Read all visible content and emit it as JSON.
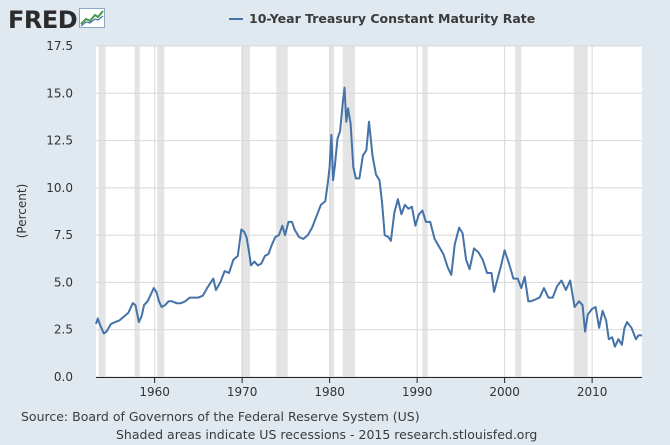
{
  "brand": {
    "logo_text": "FRED",
    "logo_icon": "trend-chart-icon"
  },
  "colors": {
    "background": "#e1e9f0",
    "plot_background": "#ffffff",
    "line": "#4572a7",
    "recession": "#e4e4e4",
    "grid": "#d8d8d8"
  },
  "footer": {
    "source": "Source: Board of Governors of the Federal Reserve System (US)",
    "note": "Shaded areas indicate US recessions - 2015 research.stlouisfed.org"
  },
  "chart_data": {
    "type": "line",
    "title": "",
    "xlabel": "",
    "ylabel": "(Percent)",
    "xlim": [
      1953.3,
      2015.7
    ],
    "ylim": [
      0,
      17.5
    ],
    "x_ticks": [
      1960,
      1970,
      1980,
      1990,
      2000,
      2010
    ],
    "x_tick_labels": [
      "1960",
      "1970",
      "1980",
      "1990",
      "2000",
      "2010"
    ],
    "y_ticks": [
      0,
      2.5,
      5,
      7.5,
      10,
      12.5,
      15,
      17.5
    ],
    "y_tick_labels": [
      "0.0",
      "2.5",
      "5.0",
      "7.5",
      "10.0",
      "12.5",
      "15.0",
      "17.5"
    ],
    "grid": true,
    "legend_position": "top-center",
    "recessions": [
      [
        1953.6,
        1954.4
      ],
      [
        1957.7,
        1958.3
      ],
      [
        1960.3,
        1961.1
      ],
      [
        1969.9,
        1970.9
      ],
      [
        1973.9,
        1975.2
      ],
      [
        1980.0,
        1980.5
      ],
      [
        1981.5,
        1982.9
      ],
      [
        1990.6,
        1991.2
      ],
      [
        2001.2,
        2001.9
      ],
      [
        2007.9,
        2009.5
      ]
    ],
    "series": [
      {
        "name": "10-Year Treasury Constant Maturity Rate",
        "x": [
          1953.3,
          1953.5,
          1953.8,
          1954.2,
          1954.5,
          1955.0,
          1955.5,
          1956.0,
          1956.5,
          1957.0,
          1957.5,
          1957.8,
          1958.2,
          1958.5,
          1958.8,
          1959.2,
          1959.6,
          1959.9,
          1960.2,
          1960.5,
          1960.8,
          1961.2,
          1961.6,
          1962.0,
          1962.5,
          1963.0,
          1963.5,
          1964.0,
          1964.5,
          1965.0,
          1965.5,
          1966.0,
          1966.7,
          1967.0,
          1967.5,
          1968.0,
          1968.5,
          1969.0,
          1969.5,
          1969.9,
          1970.2,
          1970.5,
          1970.8,
          1971.0,
          1971.4,
          1971.8,
          1972.2,
          1972.6,
          1973.0,
          1973.4,
          1973.8,
          1974.2,
          1974.6,
          1974.9,
          1975.3,
          1975.7,
          1976.0,
          1976.5,
          1977.0,
          1977.5,
          1978.0,
          1978.5,
          1979.0,
          1979.5,
          1979.8,
          1980.0,
          1980.2,
          1980.4,
          1980.6,
          1980.9,
          1981.2,
          1981.5,
          1981.7,
          1981.9,
          1982.1,
          1982.4,
          1982.7,
          1983.0,
          1983.4,
          1983.8,
          1984.2,
          1984.5,
          1984.9,
          1985.3,
          1985.7,
          1986.0,
          1986.3,
          1986.7,
          1987.0,
          1987.4,
          1987.8,
          1988.2,
          1988.6,
          1989.0,
          1989.4,
          1989.8,
          1990.2,
          1990.6,
          1991.0,
          1991.5,
          1992.0,
          1992.5,
          1993.0,
          1993.5,
          1993.9,
          1994.3,
          1994.8,
          1995.2,
          1995.6,
          1996.0,
          1996.5,
          1997.0,
          1997.5,
          1998.0,
          1998.5,
          1998.8,
          1999.2,
          1999.6,
          2000.0,
          2000.5,
          2001.0,
          2001.5,
          2001.9,
          2002.3,
          2002.7,
          2003.0,
          2003.5,
          2004.0,
          2004.5,
          2005.0,
          2005.5,
          2006.0,
          2006.5,
          2007.0,
          2007.5,
          2008.0,
          2008.5,
          2008.9,
          2009.2,
          2009.5,
          2010.0,
          2010.4,
          2010.8,
          2011.2,
          2011.6,
          2011.9,
          2012.3,
          2012.6,
          2013.0,
          2013.4,
          2013.7,
          2014.0,
          2014.5,
          2015.0,
          2015.3,
          2015.7
        ],
        "y": [
          2.8,
          3.1,
          2.7,
          2.3,
          2.4,
          2.8,
          2.9,
          3.0,
          3.2,
          3.4,
          3.9,
          3.8,
          2.9,
          3.2,
          3.8,
          4.0,
          4.4,
          4.7,
          4.5,
          4.0,
          3.7,
          3.8,
          4.0,
          4.0,
          3.9,
          3.9,
          4.0,
          4.2,
          4.2,
          4.2,
          4.3,
          4.7,
          5.2,
          4.6,
          5.0,
          5.6,
          5.5,
          6.2,
          6.4,
          7.8,
          7.7,
          7.4,
          6.6,
          5.9,
          6.1,
          5.9,
          6.0,
          6.4,
          6.5,
          7.0,
          7.4,
          7.5,
          8.0,
          7.5,
          8.2,
          8.2,
          7.8,
          7.4,
          7.3,
          7.5,
          7.9,
          8.5,
          9.1,
          9.3,
          10.3,
          11.1,
          12.8,
          10.4,
          11.2,
          12.6,
          13.0,
          14.5,
          15.3,
          13.5,
          14.2,
          13.4,
          11.1,
          10.5,
          10.5,
          11.7,
          12.0,
          13.5,
          11.7,
          10.7,
          10.4,
          9.2,
          7.5,
          7.4,
          7.2,
          8.7,
          9.4,
          8.6,
          9.1,
          8.9,
          9.0,
          8.0,
          8.6,
          8.8,
          8.2,
          8.2,
          7.3,
          6.9,
          6.5,
          5.8,
          5.4,
          7.0,
          7.9,
          7.6,
          6.2,
          5.7,
          6.8,
          6.6,
          6.2,
          5.5,
          5.5,
          4.5,
          5.2,
          5.9,
          6.7,
          6.0,
          5.2,
          5.2,
          4.7,
          5.3,
          4.0,
          4.0,
          4.1,
          4.2,
          4.7,
          4.2,
          4.2,
          4.8,
          5.1,
          4.6,
          5.1,
          3.7,
          4.0,
          3.8,
          2.4,
          3.3,
          3.6,
          3.7,
          2.6,
          3.5,
          3.0,
          2.0,
          2.1,
          1.6,
          2.0,
          1.7,
          2.6,
          2.9,
          2.6,
          2.0,
          2.2,
          2.2
        ]
      }
    ]
  }
}
